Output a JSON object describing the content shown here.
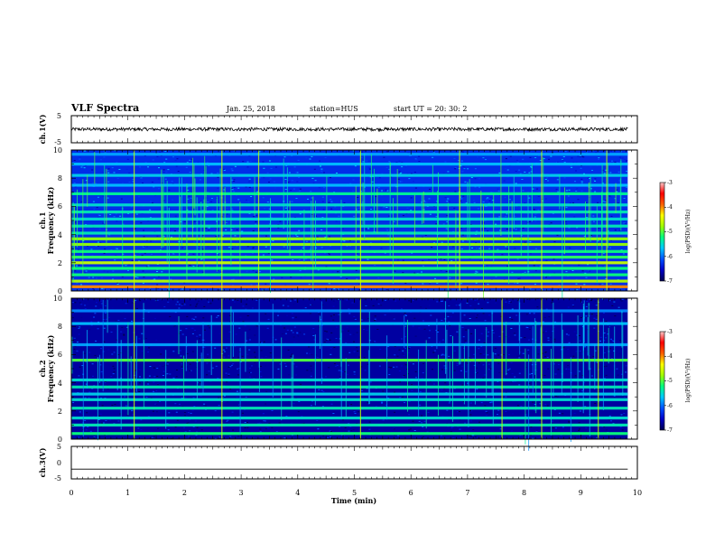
{
  "header": {
    "title": "VLF Spectra",
    "date": "Jan. 25, 2018",
    "station": "station=HUS",
    "start": "start  UT  =   20: 30: 2"
  },
  "colors": {
    "colormap": [
      "#000050",
      "#0000c8",
      "#0050ff",
      "#00c8ff",
      "#00ff80",
      "#a0ff00",
      "#ffff00",
      "#ff6000",
      "#ff0000",
      "#ffc8c8"
    ]
  },
  "chart_data": [
    {
      "type": "line",
      "ylabel": "ch.1(V)",
      "xlim": [
        0,
        10
      ],
      "ylim": [
        -5,
        5
      ],
      "yticks": [
        "5",
        "-5"
      ],
      "signal": {
        "mean": 0,
        "amplitude": 0.6,
        "x_end": 9.83
      }
    },
    {
      "type": "heatmap",
      "ylabel": "ch.1",
      "ylabel2": "Frequency  (kHz)",
      "xlim": [
        0,
        10
      ],
      "ylim": [
        0,
        10
      ],
      "yticks": [
        "0",
        "2",
        "4",
        "6",
        "8",
        "10"
      ],
      "x_end": 9.83,
      "background_level": -6.3,
      "bands_khz": [
        {
          "f": 0.3,
          "level": -4.0
        },
        {
          "f": 0.7,
          "level": -4.7
        },
        {
          "f": 1.15,
          "level": -5.2
        },
        {
          "f": 1.6,
          "level": -5.2
        },
        {
          "f": 2.0,
          "level": -4.6
        },
        {
          "f": 2.4,
          "level": -5.1
        },
        {
          "f": 2.8,
          "level": -5.2
        },
        {
          "f": 3.3,
          "level": -4.8
        },
        {
          "f": 3.7,
          "level": -4.8
        },
        {
          "f": 4.1,
          "level": -5.4
        },
        {
          "f": 4.6,
          "level": -5.4
        },
        {
          "f": 5.1,
          "level": -5.5
        },
        {
          "f": 5.6,
          "level": -5.4
        },
        {
          "f": 6.1,
          "level": -5.5
        },
        {
          "f": 6.9,
          "level": -5.3
        },
        {
          "f": 7.5,
          "level": -5.7
        },
        {
          "f": 8.2,
          "level": -5.6
        },
        {
          "f": 9.0,
          "level": -5.7
        },
        {
          "f": 9.7,
          "level": -5.8
        }
      ],
      "spikes_min": [
        1.1,
        2.65,
        3.3,
        5.1,
        6.85,
        8.3,
        9.45
      ],
      "colorbar": {
        "label": "log(PSD)(V²/Hz)",
        "range": [
          -7,
          -3
        ],
        "ticks": [
          "-3",
          "-4",
          "-5",
          "-6",
          "-7"
        ]
      }
    },
    {
      "type": "heatmap",
      "ylabel": "ch.2",
      "ylabel2": "Frequency  (kHz)",
      "xlim": [
        0,
        10
      ],
      "ylim": [
        0,
        10
      ],
      "yticks": [
        "0",
        "2",
        "4",
        "6",
        "8",
        "10"
      ],
      "x_end": 9.83,
      "background_level": -6.7,
      "bands_khz": [
        {
          "f": 0.4,
          "level": -5.2
        },
        {
          "f": 1.0,
          "level": -5.4
        },
        {
          "f": 1.5,
          "level": -5.5
        },
        {
          "f": 2.2,
          "level": -5.4
        },
        {
          "f": 2.8,
          "level": -5.5
        },
        {
          "f": 3.2,
          "level": -5.6
        },
        {
          "f": 3.7,
          "level": -5.4
        },
        {
          "f": 4.2,
          "level": -5.5
        },
        {
          "f": 5.6,
          "level": -5.0
        },
        {
          "f": 6.7,
          "level": -5.8
        },
        {
          "f": 8.2,
          "level": -5.7
        },
        {
          "f": 9.1,
          "level": -5.9
        }
      ],
      "spikes_min": [
        1.1,
        2.65,
        5.1,
        7.6,
        8.3,
        9.3
      ],
      "colorbar": {
        "label": "log(PSD)(V²/Hz)",
        "range": [
          -7,
          -3
        ],
        "ticks": [
          "-3",
          "-4",
          "-5",
          "-6",
          "-7"
        ]
      }
    },
    {
      "type": "line",
      "ylabel": "ch.3(V)",
      "xlabel": "Time  (min)",
      "xlim": [
        0,
        10
      ],
      "ylim": [
        -5,
        5
      ],
      "yticks": [
        "5",
        "0",
        "-5"
      ],
      "xticks": [
        "0",
        "1",
        "2",
        "3",
        "4",
        "5",
        "6",
        "7",
        "8",
        "9",
        "10"
      ],
      "signal": {
        "mean": -2,
        "amplitude": 0,
        "x_end": 9.83
      }
    }
  ]
}
